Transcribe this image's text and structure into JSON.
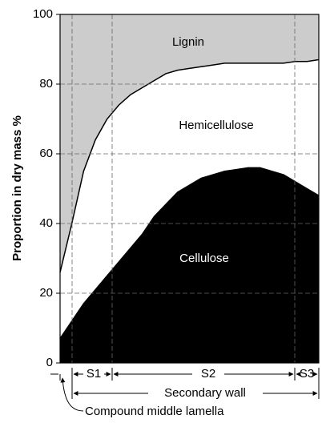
{
  "chart_data": {
    "type": "stacked-area",
    "y_axis_label": "Proportion in dry mass %",
    "categories": [
      null,
      null,
      null,
      null,
      null,
      null,
      null,
      null,
      null,
      null,
      null,
      null,
      null,
      null,
      null,
      null,
      null,
      null,
      null,
      null,
      null,
      null,
      null
    ],
    "series": [
      {
        "name": "Cellulose",
        "color": "#000000",
        "label_color": "#ffffff",
        "values": [
          7,
          12,
          17,
          21,
          25,
          29,
          33,
          37,
          42,
          45.5,
          49,
          51,
          53,
          54,
          55,
          55.5,
          56,
          56,
          55,
          54,
          52,
          50,
          48
        ]
      },
      {
        "name": "Hemicellulose",
        "color": "#ffffff",
        "label_color": "#000000",
        "values": [
          19,
          28,
          38,
          43,
          45,
          45,
          44,
          42,
          39,
          37.5,
          35,
          33.5,
          32,
          31.5,
          31,
          30.5,
          30,
          30,
          31,
          32,
          34.5,
          36.5,
          39
        ]
      },
      {
        "name": "Lignin",
        "color": "#cccccc",
        "label_color": "#000000",
        "values": [
          74,
          60,
          45,
          36,
          30,
          26,
          23,
          21,
          19,
          17,
          16,
          15.5,
          15,
          14.5,
          14,
          14,
          14,
          14,
          14,
          14,
          13.5,
          13.5,
          13
        ]
      }
    ],
    "ylim": [
      0,
      100
    ],
    "yticks": [
      0,
      20,
      40,
      60,
      80,
      100
    ],
    "grid": true,
    "annotations": {
      "s1": "S1",
      "s2": "S2",
      "s3": "S3",
      "secondary_wall": "Secondary wall",
      "middle_lamella": "Compound middle lamella"
    }
  }
}
